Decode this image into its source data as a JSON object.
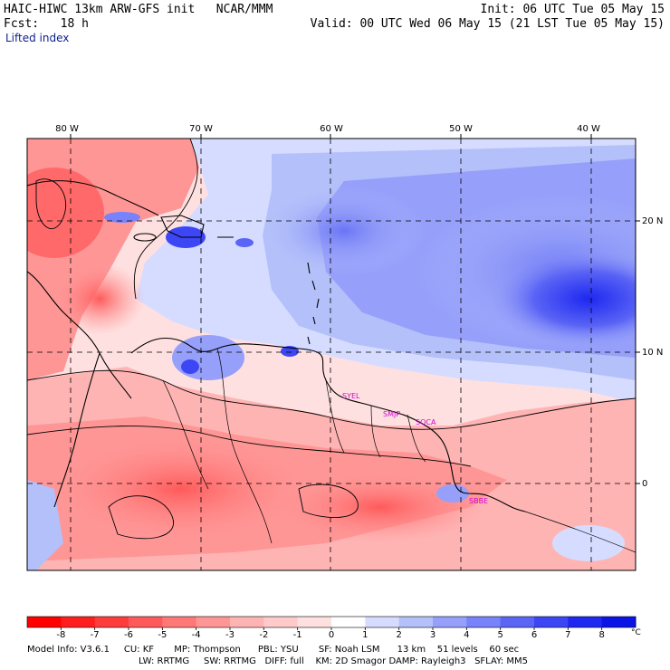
{
  "header": {
    "title": "HAIC-HIWC 13km ARW-GFS init   NCAR/MMM",
    "fcst": "Fcst:   18 h",
    "field": "Lifted index",
    "init": "Init: 06 UTC Tue 05 May 15",
    "valid": "Valid: 00 UTC Wed 06 May 15 (21 LST Tue 05 May 15)"
  },
  "map": {
    "lon_labels": [
      "80 W",
      "70 W",
      "60 W",
      "50 W",
      "40 W"
    ],
    "lat_labels": [
      "20 N",
      "10 N",
      "0"
    ],
    "stations": [
      "SYEL",
      "SMJP",
      "SOCA",
      "SBBE"
    ]
  },
  "colorbar": {
    "ticks": [
      "-8",
      "-7",
      "-6",
      "-5",
      "-4",
      "-3",
      "-2",
      "-1",
      "0",
      "1",
      "2",
      "3",
      "4",
      "5",
      "6",
      "7",
      "8"
    ],
    "unit": "°C",
    "colors": [
      "#ff1e1e",
      "#ff3c3c",
      "#ff5a5a",
      "#ff7878",
      "#ff9696",
      "#ffb4b4",
      "#ffcaca",
      "#ffe0e0",
      "#ffffff",
      "#d6dcff",
      "#b4c0fa",
      "#96a0fa",
      "#7882fa",
      "#5a64f5",
      "#3c46f5",
      "#1e28f0",
      "#0a14e6"
    ]
  },
  "footer": {
    "line1": "Model Info: V3.6.1     CU: KF       MP: Thompson      PBL: YSU       SF: Noah LSM      13 km    51 levels    60 sec",
    "line2": "LW: RRTMG     SW: RRTMG   DIFF: full    KM: 2D Smagor DAMP: Rayleigh3   SFLAY: MM5"
  }
}
